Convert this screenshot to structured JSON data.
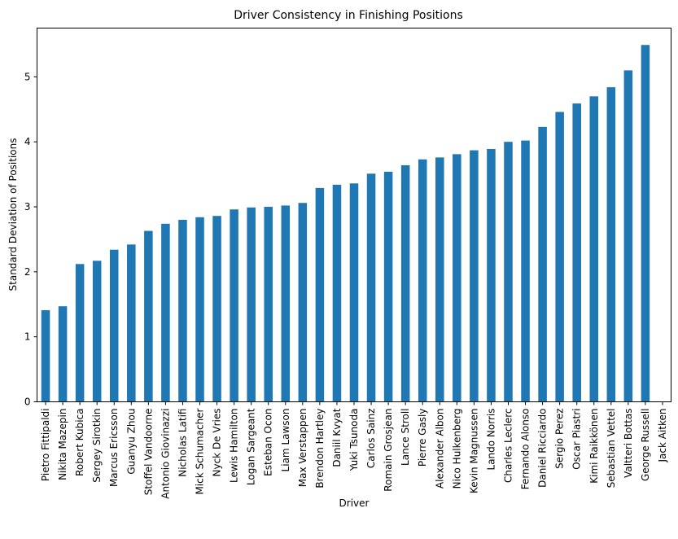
{
  "chart_data": {
    "type": "bar",
    "title": "Driver Consistency in Finishing Positions",
    "xlabel": "Driver",
    "ylabel": "Standard Deviation of Positions",
    "ylim": [
      0,
      5.75
    ],
    "yticks": [
      0,
      1,
      2,
      3,
      4,
      5
    ],
    "grid": false,
    "color": "#1f77b4",
    "categories": [
      "Pietro Fittipaldi",
      "Nikita Mazepin",
      "Robert Kubica",
      "Sergey Sirotkin",
      "Marcus Ericsson",
      "Guanyu Zhou",
      "Stoffel Vandoorne",
      "Antonio Giovinazzi",
      "Nicholas Latifi",
      "Mick Schumacher",
      "Nyck De Vries",
      "Lewis Hamilton",
      "Logan Sargeant",
      "Esteban Ocon",
      "Liam Lawson",
      "Max Verstappen",
      "Brendon Hartley",
      "Daniil Kvyat",
      "Yuki Tsunoda",
      "Carlos Sainz",
      "Romain Grosjean",
      "Lance Stroll",
      "Pierre Gasly",
      "Alexander Albon",
      "Nico Hulkenberg",
      "Kevin Magnussen",
      "Lando Norris",
      "Charles Leclerc",
      "Fernando Alonso",
      "Daniel Ricciardo",
      "Sergio Perez",
      "Oscar Piastri",
      "Kimi Raikkönen",
      "Sebastian Vettel",
      "Valtteri Bottas",
      "George Russell",
      "Jack Aitken"
    ],
    "values": [
      1.41,
      1.47,
      2.12,
      2.17,
      2.34,
      2.42,
      2.63,
      2.74,
      2.8,
      2.84,
      2.86,
      2.96,
      2.99,
      3.0,
      3.02,
      3.06,
      3.29,
      3.34,
      3.36,
      3.51,
      3.54,
      3.64,
      3.73,
      3.76,
      3.81,
      3.87,
      3.89,
      4.0,
      4.02,
      4.23,
      4.46,
      4.59,
      4.7,
      4.84,
      5.1,
      5.49,
      0
    ]
  }
}
